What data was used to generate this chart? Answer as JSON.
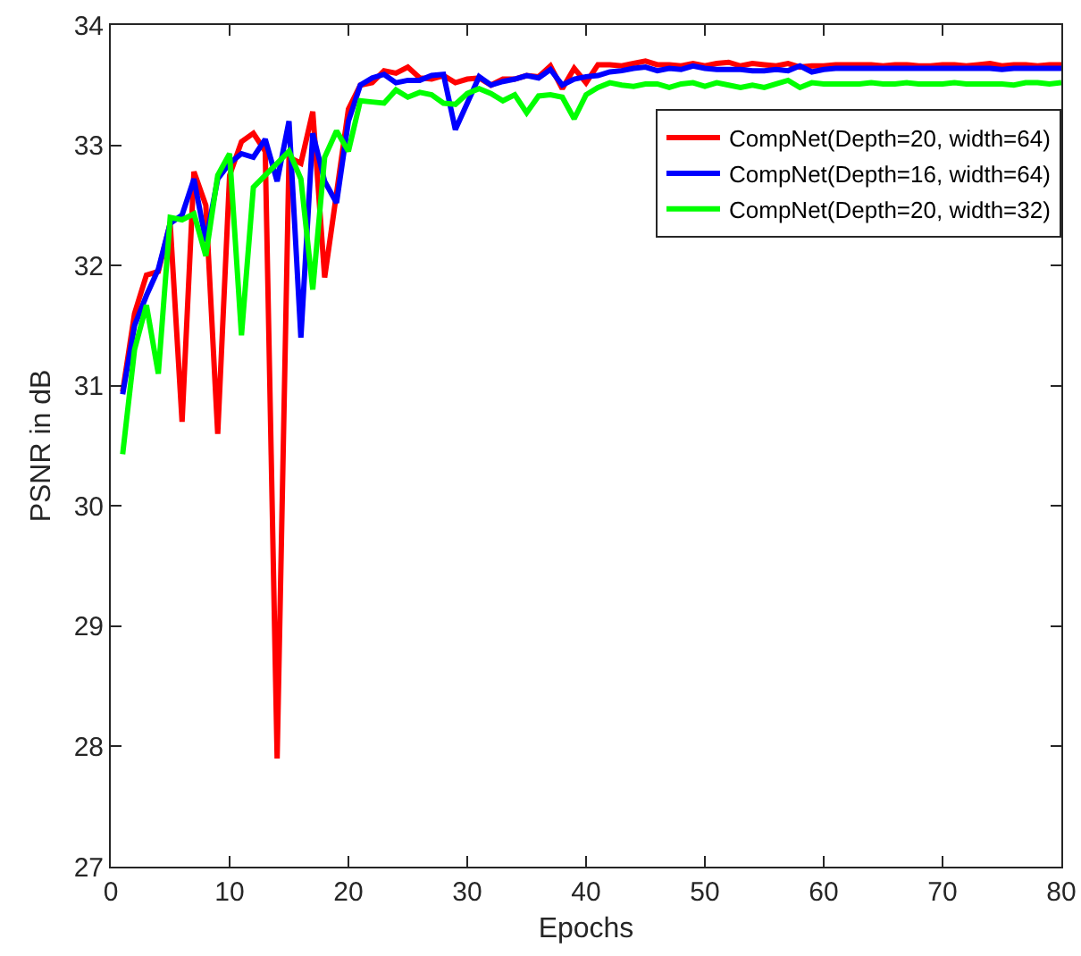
{
  "chart_data": {
    "type": "line",
    "xlabel": "Epochs",
    "ylabel": "PSNR in dB",
    "x": [
      1,
      2,
      3,
      4,
      5,
      6,
      7,
      8,
      9,
      10,
      11,
      12,
      13,
      14,
      15,
      16,
      17,
      18,
      19,
      20,
      21,
      22,
      23,
      24,
      25,
      26,
      27,
      28,
      29,
      30,
      31,
      32,
      33,
      34,
      35,
      36,
      37,
      38,
      39,
      40,
      41,
      42,
      43,
      44,
      45,
      46,
      47,
      48,
      49,
      50,
      51,
      52,
      53,
      54,
      55,
      56,
      57,
      58,
      59,
      60,
      61,
      62,
      63,
      64,
      65,
      66,
      67,
      68,
      69,
      70,
      71,
      72,
      73,
      74,
      75,
      76,
      77,
      78,
      79,
      80
    ],
    "series": [
      {
        "name": "CompNet(Depth=20, width=64)",
        "color": "#ff0000",
        "values": [
          30.95,
          31.6,
          31.92,
          31.95,
          32.35,
          30.7,
          32.78,
          32.5,
          30.6,
          32.75,
          33.03,
          33.1,
          32.95,
          27.9,
          32.9,
          32.85,
          33.28,
          31.9,
          32.6,
          33.3,
          33.5,
          33.52,
          33.62,
          33.6,
          33.65,
          33.56,
          33.55,
          33.58,
          33.52,
          33.55,
          33.56,
          33.5,
          33.55,
          33.55,
          33.58,
          33.57,
          33.66,
          33.47,
          33.64,
          33.52,
          33.67,
          33.67,
          33.66,
          33.68,
          33.7,
          33.67,
          33.67,
          33.66,
          33.68,
          33.66,
          33.68,
          33.69,
          33.66,
          33.68,
          33.67,
          33.66,
          33.68,
          33.65,
          33.66,
          33.66,
          33.67,
          33.67,
          33.67,
          33.67,
          33.66,
          33.67,
          33.67,
          33.66,
          33.66,
          33.67,
          33.67,
          33.66,
          33.67,
          33.68,
          33.66,
          33.67,
          33.67,
          33.66,
          33.67,
          33.67
        ]
      },
      {
        "name": "CompNet(Depth=16, width=64)",
        "color": "#0000ff",
        "values": [
          30.93,
          31.5,
          31.75,
          31.97,
          32.35,
          32.42,
          32.72,
          32.2,
          32.72,
          32.85,
          32.93,
          32.9,
          33.05,
          32.7,
          33.2,
          31.4,
          33.1,
          32.7,
          32.52,
          33.2,
          33.5,
          33.56,
          33.59,
          33.52,
          33.54,
          33.54,
          33.58,
          33.59,
          33.13,
          33.35,
          33.57,
          33.5,
          33.53,
          33.55,
          33.58,
          33.56,
          33.63,
          33.5,
          33.55,
          33.57,
          33.58,
          33.61,
          33.62,
          33.64,
          33.65,
          33.62,
          33.64,
          33.63,
          33.66,
          33.64,
          33.63,
          33.63,
          33.63,
          33.62,
          33.62,
          33.63,
          33.62,
          33.66,
          33.61,
          33.63,
          33.64,
          33.64,
          33.64,
          33.64,
          33.64,
          33.64,
          33.64,
          33.64,
          33.64,
          33.64,
          33.64,
          33.64,
          33.64,
          33.64,
          33.63,
          33.64,
          33.64,
          33.64,
          33.64,
          33.64
        ]
      },
      {
        "name": "CompNet(Depth=20, width=32)",
        "color": "#00ff00",
        "values": [
          30.43,
          31.3,
          31.67,
          31.1,
          32.4,
          32.38,
          32.43,
          32.08,
          32.75,
          32.93,
          31.42,
          32.65,
          32.75,
          32.85,
          32.95,
          32.72,
          31.8,
          32.9,
          33.12,
          32.95,
          33.37,
          33.36,
          33.35,
          33.46,
          33.4,
          33.44,
          33.42,
          33.35,
          33.34,
          33.43,
          33.47,
          33.43,
          33.37,
          33.42,
          33.27,
          33.41,
          33.42,
          33.4,
          33.22,
          33.42,
          33.48,
          33.52,
          33.5,
          33.49,
          33.51,
          33.51,
          33.48,
          33.51,
          33.52,
          33.49,
          33.52,
          33.5,
          33.48,
          33.5,
          33.48,
          33.51,
          33.54,
          33.48,
          33.52,
          33.51,
          33.51,
          33.51,
          33.51,
          33.52,
          33.51,
          33.51,
          33.52,
          33.51,
          33.51,
          33.51,
          33.52,
          33.51,
          33.51,
          33.51,
          33.51,
          33.5,
          33.52,
          33.52,
          33.51,
          33.52
        ]
      }
    ],
    "xlim": [
      0,
      80
    ],
    "xticks": [
      0,
      10,
      20,
      30,
      40,
      50,
      60,
      70,
      80
    ],
    "ylim": [
      27,
      34
    ],
    "yticks": [
      27,
      28,
      29,
      30,
      31,
      32,
      33,
      34
    ],
    "grid": false,
    "legend": "top right",
    "marker": "none",
    "line_style": "solid"
  }
}
